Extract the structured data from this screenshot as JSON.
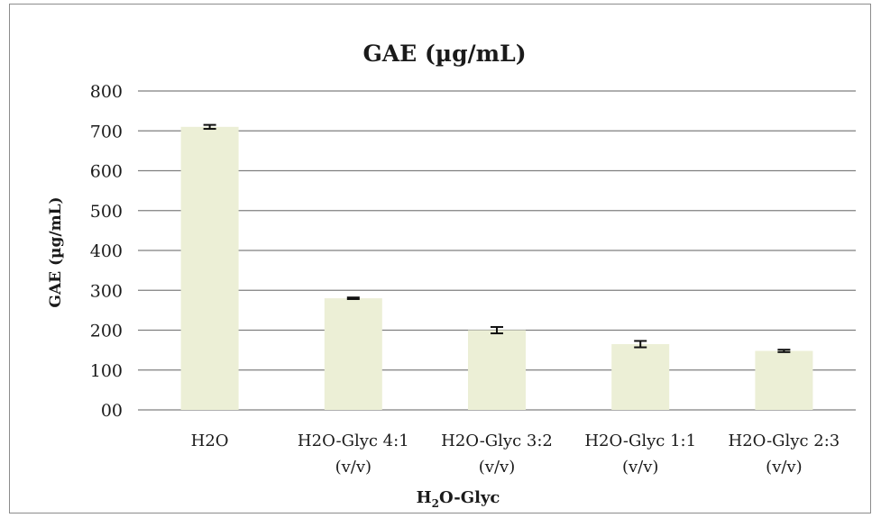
{
  "chart_data": {
    "type": "bar",
    "title": "GAE (µg/mL)",
    "ylabel": "GAE (µg/mL)",
    "xlabel": {
      "prefix": "H",
      "subscript": "2",
      "suffix": "O-Glyc"
    },
    "categories": [
      [
        "H2O"
      ],
      [
        "H2O-Glyc 4:1",
        "(v/v)"
      ],
      [
        "H2O-Glyc 3:2",
        "(v/v)"
      ],
      [
        "H2O-Glyc 1:1",
        "(v/v)"
      ],
      [
        "H2O-Glyc 2:3",
        "(v/v)"
      ]
    ],
    "values": [
      710,
      280,
      200,
      165,
      148
    ],
    "errors": [
      5,
      2,
      8,
      8,
      3
    ],
    "ylim": [
      0,
      800
    ],
    "yticks": [
      0,
      100,
      200,
      300,
      400,
      500,
      600,
      700,
      800
    ],
    "ytick_labels": [
      "00",
      "100",
      "200",
      "300",
      "400",
      "500",
      "600",
      "700",
      "800"
    ],
    "grid": true,
    "colors": {
      "bar": "#ecefd6",
      "grid": "#7f7f7f",
      "text": "#1a1a1a",
      "error_bar": "#111111"
    }
  }
}
